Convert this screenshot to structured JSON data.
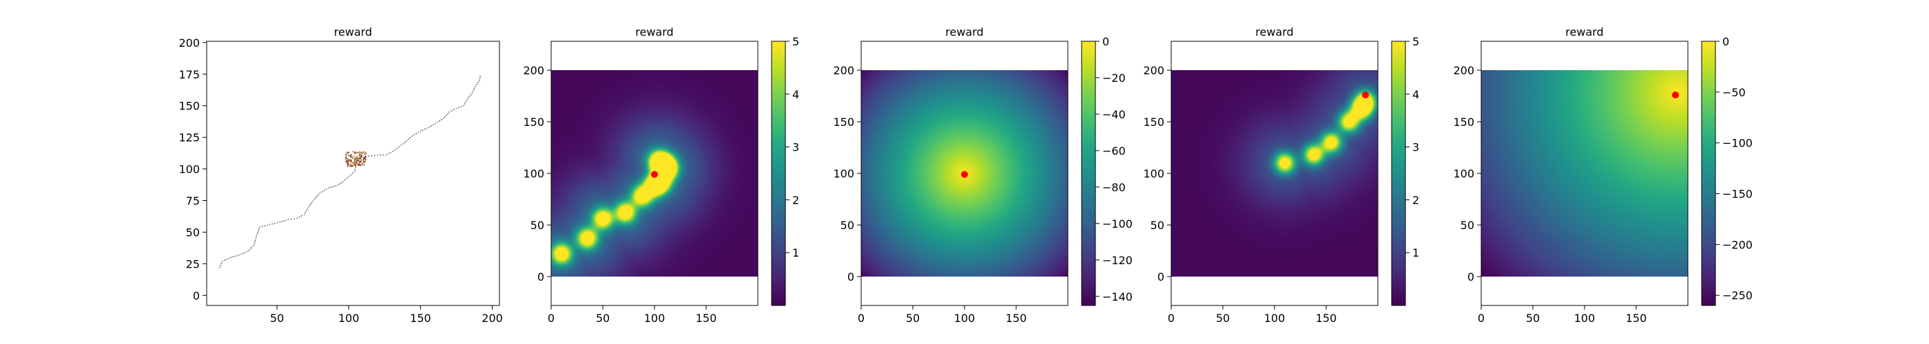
{
  "chart_data": [
    {
      "type": "line",
      "title": "reward",
      "xlabel": "",
      "ylabel": "",
      "xlim": [
        1,
        205
      ],
      "ylim": [
        -8,
        201
      ],
      "xticks": [
        50,
        100,
        150,
        200
      ],
      "yticks": [
        0,
        25,
        50,
        75,
        100,
        125,
        150,
        175,
        200
      ],
      "series": [
        {
          "style": "dotted trajectory",
          "points": [
            [
              10,
              22
            ],
            [
              12,
              27
            ],
            [
              18,
              30
            ],
            [
              24,
              32
            ],
            [
              30,
              35
            ],
            [
              34,
              40
            ],
            [
              36,
              48
            ],
            [
              38,
              54
            ],
            [
              45,
              56
            ],
            [
              52,
              58
            ],
            [
              58,
              60
            ],
            [
              64,
              61
            ],
            [
              69,
              64
            ],
            [
              72,
              70
            ],
            [
              76,
              76
            ],
            [
              80,
              81
            ],
            [
              86,
              85
            ],
            [
              92,
              87
            ],
            [
              96,
              90
            ],
            [
              100,
              94
            ],
            [
              104,
              98
            ],
            [
              105,
              103
            ],
            [
              106,
              108
            ],
            [
              112,
              110
            ],
            [
              120,
              111
            ],
            [
              126,
              111
            ],
            [
              132,
              115
            ],
            [
              138,
              120
            ],
            [
              144,
              126
            ],
            [
              150,
              130
            ],
            [
              156,
              133
            ],
            [
              162,
              137
            ],
            [
              166,
              140
            ],
            [
              170,
              145
            ],
            [
              175,
              148
            ],
            [
              180,
              150
            ],
            [
              183,
              156
            ],
            [
              186,
              160
            ],
            [
              188,
              165
            ],
            [
              191,
              170
            ],
            [
              192,
              175
            ]
          ],
          "cluster": {
            "x": 105,
            "y": 108
          }
        }
      ]
    },
    {
      "type": "heatmap",
      "title": "reward",
      "extent": [
        0,
        200,
        0,
        200
      ],
      "xlim": [
        0,
        200
      ],
      "ylim": [
        -28,
        228
      ],
      "xticks": [
        0,
        50,
        100,
        150
      ],
      "yticks": [
        0,
        50,
        100,
        150,
        200
      ],
      "field": "gaussian bumps",
      "bumps": [
        [
          10,
          22
        ],
        [
          35,
          37
        ],
        [
          50,
          56
        ],
        [
          72,
          62
        ],
        [
          88,
          78
        ],
        [
          100,
          88
        ],
        [
          106,
          92
        ],
        [
          104,
          112
        ],
        [
          110,
          108
        ],
        [
          112,
          104
        ]
      ],
      "bump_sigma": 7,
      "background": 0.35,
      "marker": [
        100,
        99
      ],
      "colorbar": {
        "min": 0,
        "max": 5,
        "ticks": [
          1,
          2,
          3,
          4,
          5
        ]
      }
    },
    {
      "type": "heatmap",
      "title": "reward",
      "extent": [
        0,
        200,
        0,
        200
      ],
      "xlim": [
        0,
        200
      ],
      "ylim": [
        -28,
        228
      ],
      "xticks": [
        0,
        50,
        100,
        150
      ],
      "yticks": [
        0,
        50,
        100,
        150,
        200
      ],
      "field": "negative distance to goal",
      "goal": [
        100,
        100
      ],
      "marker": [
        100,
        99
      ],
      "colorbar": {
        "min": -145,
        "max": 0,
        "ticks": [
          0,
          -20,
          -40,
          -60,
          -80,
          -100,
          -120,
          -140
        ]
      }
    },
    {
      "type": "heatmap",
      "title": "reward",
      "extent": [
        0,
        200,
        0,
        200
      ],
      "xlim": [
        0,
        200
      ],
      "ylim": [
        -28,
        228
      ],
      "xticks": [
        0,
        50,
        100,
        150
      ],
      "yticks": [
        0,
        50,
        100,
        150,
        200
      ],
      "field": "gaussian bumps",
      "bumps": [
        [
          110,
          110
        ],
        [
          138,
          118
        ],
        [
          155,
          130
        ],
        [
          172,
          150
        ],
        [
          184,
          162
        ],
        [
          188,
          170
        ]
      ],
      "bump_sigma": 7,
      "background": 0.25,
      "marker": [
        188,
        176
      ],
      "colorbar": {
        "min": 0,
        "max": 5,
        "ticks": [
          1,
          2,
          3,
          4,
          5
        ]
      }
    },
    {
      "type": "heatmap",
      "title": "reward",
      "extent": [
        0,
        200,
        0,
        200
      ],
      "xlim": [
        0,
        200
      ],
      "ylim": [
        -28,
        228
      ],
      "xticks": [
        0,
        50,
        100,
        150
      ],
      "yticks": [
        0,
        50,
        100,
        150,
        200
      ],
      "field": "negative distance to goal",
      "goal": [
        190,
        178
      ],
      "marker": [
        188,
        176
      ],
      "colorbar": {
        "min": -260,
        "max": 0,
        "ticks": [
          0,
          -50,
          -100,
          -150,
          -200,
          -250
        ]
      }
    }
  ]
}
